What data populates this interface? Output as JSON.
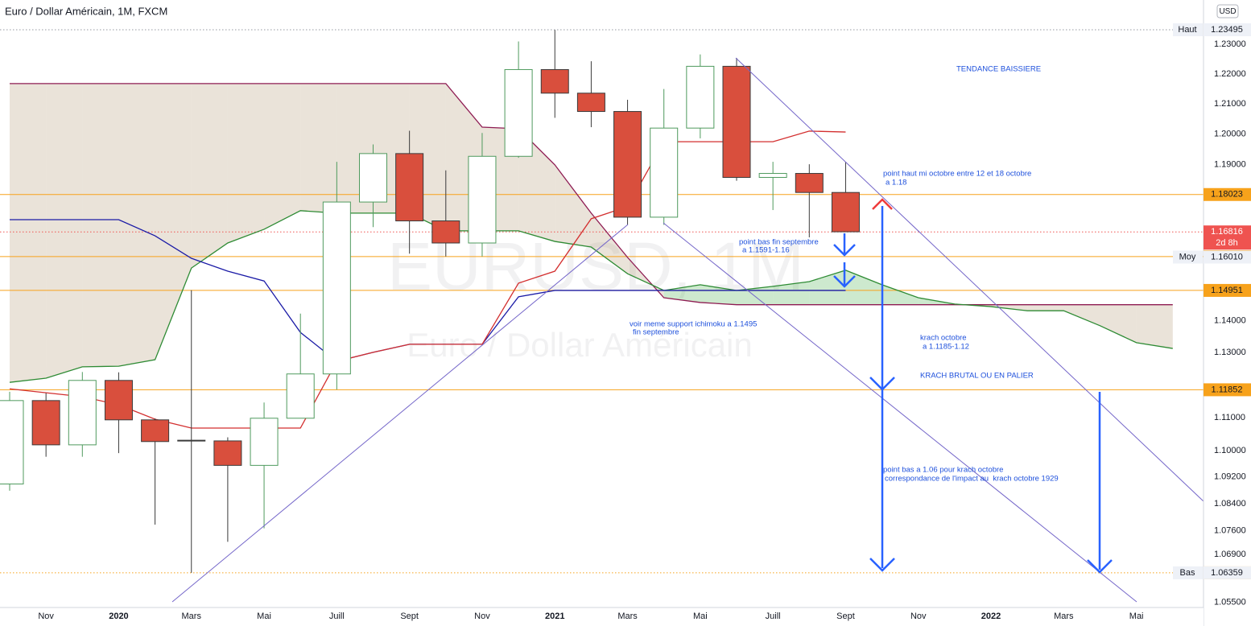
{
  "chart_data": {
    "type": "candlestick",
    "title": "Euro / Dollar Américain, 1M, FXCM",
    "watermark": [
      "EURUSD, 1M",
      "Euro / Dollar Américain"
    ],
    "currency": "USD",
    "log_scale": true,
    "grid": false,
    "ylim": [
      1.0535,
      1.2451
    ],
    "yticks": [
      {
        "value": 1.23,
        "label": "1.23000"
      },
      {
        "value": 1.22,
        "label": "1.22000"
      },
      {
        "value": 1.21,
        "label": "1.21000"
      },
      {
        "value": 1.2,
        "label": "1.20000"
      },
      {
        "value": 1.19,
        "label": "1.19000"
      },
      {
        "value": 1.14,
        "label": "1.14000"
      },
      {
        "value": 1.13,
        "label": "1.13000"
      },
      {
        "value": 1.11,
        "label": "1.11000"
      },
      {
        "value": 1.1,
        "label": "1.10000"
      },
      {
        "value": 1.092,
        "label": "1.09200"
      },
      {
        "value": 1.084,
        "label": "1.08400"
      },
      {
        "value": 1.076,
        "label": "1.07600"
      },
      {
        "value": 1.069,
        "label": "1.06900"
      },
      {
        "value": 1.055,
        "label": "1.05500"
      }
    ],
    "categories": [
      null,
      "Nov",
      null,
      "2020",
      null,
      "Mars",
      null,
      "Mai",
      null,
      "Juill",
      null,
      "Sept",
      null,
      "Nov",
      null,
      "2021",
      null,
      "Mars",
      null,
      "Mai",
      null,
      "Juill",
      null,
      "Sept",
      null,
      "Nov",
      null,
      "2022",
      null,
      "Mars",
      null,
      "Mai",
      null
    ],
    "candles": {
      "up_color": "#4f9a5e",
      "down_color": "#d94f3d",
      "hollow_fill": "#ffffff",
      "open": [
        1.0899,
        1.1152,
        1.1017,
        1.1214,
        1.1093,
        1.1031,
        1.1029,
        1.0955,
        1.1098,
        1.1234,
        1.1778,
        1.1936,
        1.1717,
        1.1646,
        1.1927,
        1.2215,
        1.2136,
        1.2075,
        1.1729,
        1.202,
        1.2226,
        1.1858,
        1.1871,
        1.1809,
        null,
        null,
        null,
        null,
        null,
        null,
        null,
        null,
        null
      ],
      "high": [
        1.1179,
        1.1175,
        1.124,
        1.1239,
        1.1097,
        1.1496,
        1.104,
        1.1146,
        1.1422,
        1.1909,
        1.1966,
        1.2011,
        1.1881,
        1.2004,
        1.231,
        1.2349,
        1.2243,
        1.2114,
        1.215,
        1.2266,
        1.2254,
        1.1909,
        1.1901,
        1.1909,
        null,
        null,
        null,
        null,
        null,
        null,
        null,
        null,
        null
      ],
      "low": [
        1.0879,
        1.0981,
        1.0981,
        1.0992,
        1.0778,
        1.0636,
        1.0727,
        1.0767,
        1.1098,
        1.1186,
        1.1697,
        1.1612,
        1.1603,
        1.1603,
        1.1922,
        1.2054,
        1.2023,
        1.1704,
        1.1704,
        1.1986,
        1.1847,
        1.1752,
        1.1664,
        1.1682,
        null,
        null,
        null,
        null,
        null,
        null,
        null,
        null,
        null
      ],
      "close": [
        1.1152,
        1.1017,
        1.1214,
        1.1093,
        1.1027,
        1.1029,
        1.0955,
        1.1098,
        1.1234,
        1.1778,
        1.1936,
        1.1717,
        1.1646,
        1.1927,
        1.2215,
        1.2136,
        1.2075,
        1.1729,
        1.202,
        1.2226,
        1.1858,
        1.1871,
        1.1809,
        1.1682,
        null,
        null,
        null,
        null,
        null,
        null,
        null,
        null,
        null
      ]
    },
    "ichimoku": {
      "conversion": {
        "color": "#d32f2f",
        "values": [
          1.1188,
          1.1176,
          1.1164,
          1.1139,
          1.1095,
          1.1068,
          1.1068,
          1.1068,
          1.1068,
          1.1273,
          1.1301,
          1.1326,
          1.1326,
          1.1326,
          1.1518,
          1.1556,
          1.1724,
          1.1763,
          1.1975,
          1.1975,
          1.1975,
          1.1975,
          1.201,
          1.2007,
          null,
          null,
          null,
          null,
          null,
          null,
          null,
          null,
          null
        ]
      },
      "base": {
        "color": "#1a1aa6",
        "values": [
          1.1721,
          1.1721,
          1.1721,
          1.1721,
          1.1669,
          1.1597,
          1.1556,
          1.1525,
          1.1363,
          1.1273,
          1.1301,
          1.1326,
          1.1326,
          1.1326,
          1.1475,
          1.1495,
          1.1495,
          1.1495,
          1.1495,
          1.1495,
          1.1495,
          1.1495,
          1.1495,
          1.1495,
          null,
          null,
          null,
          null,
          null,
          null,
          null,
          null,
          null
        ]
      },
      "span_a": {
        "color": "#2e8b34",
        "values": [
          1.1208,
          1.1221,
          1.1256,
          1.1258,
          1.1278,
          1.1566,
          1.1646,
          1.169,
          1.175,
          1.1742,
          1.1742,
          1.1742,
          1.1685,
          1.1685,
          1.1685,
          1.1651,
          1.1633,
          1.1548,
          1.1495,
          1.1513,
          1.1495,
          1.1508,
          1.1523,
          1.1559,
          1.1513,
          1.1472,
          1.1452,
          1.1444,
          1.1431,
          1.1431,
          1.1384,
          1.1331,
          1.1313
        ]
      },
      "span_b": {
        "color": "#8e1b52",
        "values": [
          1.2168,
          1.2168,
          1.2168,
          1.2168,
          1.2168,
          1.2168,
          1.2168,
          1.2168,
          1.2168,
          1.2168,
          1.2168,
          1.2168,
          1.2168,
          1.2023,
          1.2018,
          1.1899,
          1.1742,
          1.16,
          1.1472,
          1.1457,
          1.145,
          1.145,
          1.145,
          1.145,
          1.145,
          1.145,
          1.145,
          1.145,
          1.145,
          1.145,
          1.145,
          1.145,
          1.145
        ]
      },
      "cloud_up_color": "#4caf50",
      "cloud_down_color": "#b59a78"
    },
    "price_labels": [
      {
        "tag": "Haut",
        "value": 1.23495,
        "color": "#eef1f7",
        "text_color": "#131722",
        "line": "dotted",
        "line_color": "#9598a1"
      },
      {
        "value": 1.18023,
        "color": "#f7a21b",
        "text_color": "#131722",
        "line": "solid",
        "line_color": "#f7a21b"
      },
      {
        "value": 1.16816,
        "countdown": "2d 8h",
        "color": "#ef5350",
        "text_color": "#ffffff",
        "line": "dotted",
        "line_color": "#ef5350"
      },
      {
        "value": 1.16025,
        "color": "#f7a21b",
        "text_color": "#131722",
        "line": "solid",
        "line_color": "#f7a21b"
      },
      {
        "tag": "Moy",
        "value": 1.1601,
        "label": "1.16010",
        "color": "#eef1f7",
        "text_color": "#131722"
      },
      {
        "value": 1.14951,
        "color": "#f7a21b",
        "text_color": "#131722",
        "line": "solid",
        "line_color": "#f7a21b"
      },
      {
        "value": 1.11852,
        "color": "#f7a21b",
        "text_color": "#131722",
        "line": "solid",
        "line_color": "#f7a21b"
      },
      {
        "value": 1.06359,
        "color": "#f7a21b",
        "text_color": "#131722",
        "line": "dotted",
        "line_color": "#f7a21b"
      },
      {
        "tag": "Bas",
        "value": 1.06359,
        "color": "#eef1f7",
        "text_color": "#131722"
      }
    ],
    "annotations": [
      "TENDANCE BAISSIERE",
      "point haut mi octobre entre 12 et 18 octobre",
      "a 1.18",
      "point bas fin septembre",
      "a 1.1591-1.16",
      "voir meme support ichimoku a 1.1495",
      "fin septembre",
      "krach octobre",
      "a 1.1185-1.12",
      "KRACH BRUTAL OU EN PALIER",
      "point bas a 1.06 pour krach octobre",
      "correspondance de l'impact au  krach octobre 1929"
    ]
  }
}
